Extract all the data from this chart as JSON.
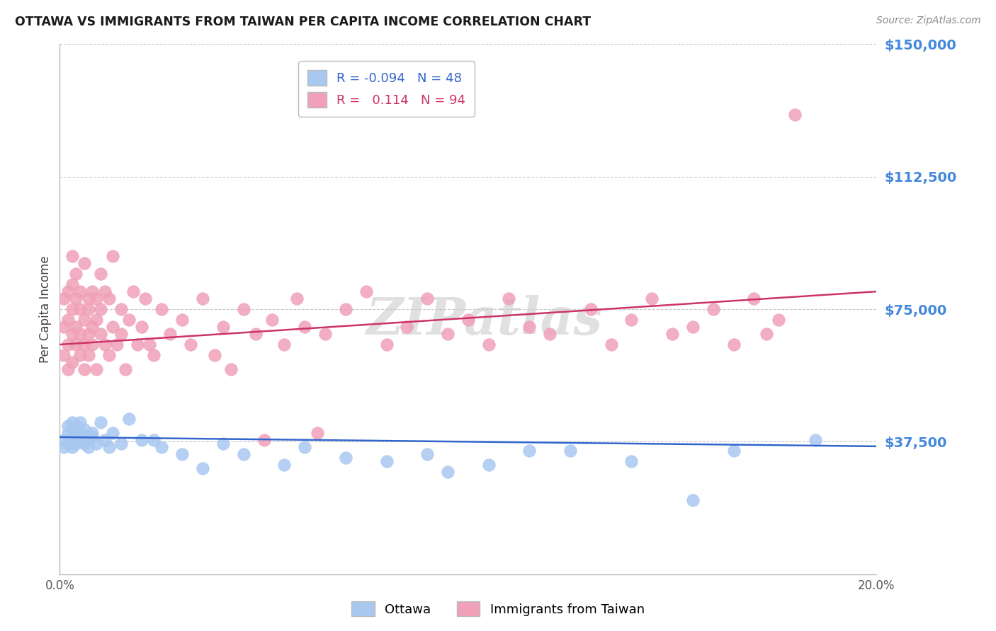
{
  "title": "OTTAWA VS IMMIGRANTS FROM TAIWAN PER CAPITA INCOME CORRELATION CHART",
  "source": "Source: ZipAtlas.com",
  "ylabel": "Per Capita Income",
  "xlim": [
    0,
    0.2
  ],
  "ylim": [
    0,
    150000
  ],
  "yticks": [
    0,
    37500,
    75000,
    112500,
    150000
  ],
  "ytick_labels": [
    "",
    "$37,500",
    "$75,000",
    "$112,500",
    "$150,000"
  ],
  "xticks": [
    0.0,
    0.05,
    0.1,
    0.15,
    0.2
  ],
  "xtick_labels": [
    "0.0%",
    "",
    "",
    "",
    "20.0%"
  ],
  "legend_r_ottawa": "-0.094",
  "legend_n_ottawa": "48",
  "legend_r_taiwan": "0.114",
  "legend_n_taiwan": "94",
  "ottawa_color": "#A8C8F0",
  "taiwan_color": "#F0A0B8",
  "ottawa_line_color": "#3366CC",
  "taiwan_line_color": "#CC3366",
  "watermark": "ZIPatlas",
  "background_color": "#FFFFFF",
  "grid_color": "#BBBBBB",
  "ottawa_x": [
    0.001,
    0.001,
    0.002,
    0.002,
    0.002,
    0.003,
    0.003,
    0.003,
    0.003,
    0.004,
    0.004,
    0.004,
    0.005,
    0.005,
    0.005,
    0.006,
    0.006,
    0.007,
    0.007,
    0.008,
    0.008,
    0.009,
    0.01,
    0.011,
    0.012,
    0.013,
    0.015,
    0.017,
    0.02,
    0.023,
    0.025,
    0.03,
    0.035,
    0.04,
    0.045,
    0.055,
    0.06,
    0.07,
    0.08,
    0.09,
    0.095,
    0.105,
    0.115,
    0.125,
    0.14,
    0.155,
    0.165,
    0.185
  ],
  "ottawa_y": [
    38000,
    36000,
    42000,
    40000,
    37000,
    43000,
    38000,
    36000,
    41000,
    39000,
    37000,
    42000,
    40000,
    38000,
    43000,
    37000,
    41000,
    38000,
    36000,
    40000,
    39000,
    37000,
    43000,
    38000,
    36000,
    40000,
    37000,
    44000,
    38000,
    38000,
    36000,
    34000,
    30000,
    37000,
    34000,
    31000,
    36000,
    33000,
    32000,
    34000,
    29000,
    31000,
    35000,
    35000,
    32000,
    21000,
    35000,
    38000
  ],
  "taiwan_x": [
    0.001,
    0.001,
    0.001,
    0.002,
    0.002,
    0.002,
    0.002,
    0.003,
    0.003,
    0.003,
    0.003,
    0.003,
    0.004,
    0.004,
    0.004,
    0.004,
    0.005,
    0.005,
    0.005,
    0.005,
    0.006,
    0.006,
    0.006,
    0.006,
    0.007,
    0.007,
    0.007,
    0.007,
    0.008,
    0.008,
    0.008,
    0.009,
    0.009,
    0.009,
    0.01,
    0.01,
    0.01,
    0.011,
    0.011,
    0.012,
    0.012,
    0.013,
    0.013,
    0.014,
    0.015,
    0.015,
    0.016,
    0.017,
    0.018,
    0.019,
    0.02,
    0.021,
    0.022,
    0.023,
    0.025,
    0.027,
    0.03,
    0.032,
    0.035,
    0.038,
    0.04,
    0.042,
    0.045,
    0.048,
    0.05,
    0.052,
    0.055,
    0.058,
    0.06,
    0.063,
    0.065,
    0.07,
    0.075,
    0.08,
    0.085,
    0.09,
    0.095,
    0.1,
    0.105,
    0.11,
    0.115,
    0.12,
    0.13,
    0.135,
    0.14,
    0.145,
    0.15,
    0.155,
    0.16,
    0.165,
    0.17,
    0.173,
    0.176,
    0.18
  ],
  "taiwan_y": [
    62000,
    70000,
    78000,
    65000,
    72000,
    80000,
    58000,
    68000,
    75000,
    82000,
    60000,
    90000,
    65000,
    78000,
    70000,
    85000,
    68000,
    75000,
    62000,
    80000,
    72000,
    65000,
    88000,
    58000,
    78000,
    68000,
    75000,
    62000,
    80000,
    70000,
    65000,
    78000,
    72000,
    58000,
    85000,
    68000,
    75000,
    80000,
    65000,
    78000,
    62000,
    90000,
    70000,
    65000,
    75000,
    68000,
    58000,
    72000,
    80000,
    65000,
    70000,
    78000,
    65000,
    62000,
    75000,
    68000,
    72000,
    65000,
    78000,
    62000,
    70000,
    58000,
    75000,
    68000,
    38000,
    72000,
    65000,
    78000,
    70000,
    40000,
    68000,
    75000,
    80000,
    65000,
    70000,
    78000,
    68000,
    72000,
    65000,
    78000,
    70000,
    68000,
    75000,
    65000,
    72000,
    78000,
    68000,
    70000,
    75000,
    65000,
    78000,
    68000,
    72000,
    130000
  ],
  "ottawa_line_x0": 0.0,
  "ottawa_line_y0": 38800,
  "ottawa_line_x1": 0.2,
  "ottawa_line_y1": 36200,
  "taiwan_line_x0": 0.0,
  "taiwan_line_y0": 65000,
  "taiwan_line_x1": 0.2,
  "taiwan_line_y1": 80000
}
